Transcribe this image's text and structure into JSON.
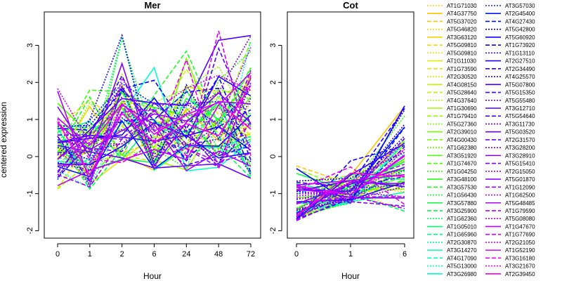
{
  "chart_data": [
    {
      "type": "line",
      "title": "Mer",
      "xlabel": "Hour",
      "ylabel": "centered expression",
      "x_categories": [
        "0",
        "1",
        "2",
        "6",
        "24",
        "48",
        "72"
      ],
      "ylim": [
        -2.2,
        3.9
      ],
      "yticks": [
        -2,
        -1,
        0,
        1,
        2,
        3
      ],
      "series_source": "legend.entries",
      "value_range_per_timepoint": [
        [
          -1.2,
          1.9
        ],
        [
          -1.2,
          1.8
        ],
        [
          -0.7,
          3.3
        ],
        [
          -0.7,
          2.5
        ],
        [
          -0.8,
          2.9
        ],
        [
          -0.8,
          3.6
        ],
        [
          -1.1,
          3.7
        ]
      ]
    },
    {
      "type": "line",
      "title": "Cot",
      "xlabel": "Hour",
      "ylabel": "",
      "x_categories": [
        "0",
        "1",
        "6"
      ],
      "ylim": [
        -2.2,
        3.9
      ],
      "yticks": [
        -2,
        -1,
        0,
        1,
        2,
        3
      ],
      "series_source": "legend.entries",
      "value_range_per_timepoint": [
        [
          -1.9,
          -0.2
        ],
        [
          -1.4,
          -0.1
        ],
        [
          -1.8,
          1.4
        ]
      ]
    }
  ],
  "legend": {
    "entries": [
      {
        "name": "AT1G71030",
        "color": "#ffcc00",
        "dash": "dot"
      },
      {
        "name": "AT4G37750",
        "color": "#ffc200",
        "dash": "solid"
      },
      {
        "name": "AT5G37020",
        "color": "#ffc800",
        "dash": "dash"
      },
      {
        "name": "AT5G46820",
        "color": "#ffd100",
        "dash": "dot"
      },
      {
        "name": "AT3G63120",
        "color": "#f7d400",
        "dash": "solid"
      },
      {
        "name": "AT5G09810",
        "color": "#f0dc00",
        "dash": "dash"
      },
      {
        "name": "AT5G09810",
        "color": "#e8e400",
        "dash": "dot"
      },
      {
        "name": "AT1G11030",
        "color": "#e0ea00",
        "dash": "solid"
      },
      {
        "name": "AT1G73590",
        "color": "#d6ef00",
        "dash": "dash"
      },
      {
        "name": "AT2G30520",
        "color": "#cdf200",
        "dash": "dot"
      },
      {
        "name": "AT4G08150",
        "color": "#c2f500",
        "dash": "solid"
      },
      {
        "name": "AT5G28640",
        "color": "#b8f800",
        "dash": "dash"
      },
      {
        "name": "AT4G37640",
        "color": "#adfa00",
        "dash": "dot"
      },
      {
        "name": "AT1G30690",
        "color": "#a0fb00",
        "dash": "solid"
      },
      {
        "name": "AT1G79410",
        "color": "#92fc00",
        "dash": "dash"
      },
      {
        "name": "AT5G27360",
        "color": "#85fd00",
        "dash": "dot"
      },
      {
        "name": "AT2G39010",
        "color": "#78fe00",
        "dash": "solid"
      },
      {
        "name": "AT4G00430",
        "color": "#6aff00",
        "dash": "dash"
      },
      {
        "name": "AT1G62380",
        "color": "#5cff00",
        "dash": "dot"
      },
      {
        "name": "AT3G51920",
        "color": "#4eff00",
        "dash": "solid"
      },
      {
        "name": "AT1G74670",
        "color": "#40ff00",
        "dash": "dash"
      },
      {
        "name": "AT1G04250",
        "color": "#33ff00",
        "dash": "dot"
      },
      {
        "name": "AT3G48100",
        "color": "#26ff10",
        "dash": "solid"
      },
      {
        "name": "AT3G57530",
        "color": "#1aff20",
        "dash": "dash"
      },
      {
        "name": "AT1G56430",
        "color": "#10ff30",
        "dash": "dot"
      },
      {
        "name": "AT3G57880",
        "color": "#08ff40",
        "dash": "solid"
      },
      {
        "name": "AT3G25900",
        "color": "#00ff50",
        "dash": "dash"
      },
      {
        "name": "AT1G62360",
        "color": "#00ff60",
        "dash": "dot"
      },
      {
        "name": "AT1G05010",
        "color": "#00ff70",
        "dash": "solid"
      },
      {
        "name": "AT1G65960",
        "color": "#00ff80",
        "dash": "dash"
      },
      {
        "name": "AT2G30870",
        "color": "#00ff90",
        "dash": "dot"
      },
      {
        "name": "AT3G14270",
        "color": "#00ffa0",
        "dash": "solid"
      },
      {
        "name": "AT4G17090",
        "color": "#00ffb0",
        "dash": "dash"
      },
      {
        "name": "AT5G13000",
        "color": "#00ffc0",
        "dash": "dot"
      },
      {
        "name": "AT3G26980",
        "color": "#00ffd0",
        "dash": "solid"
      },
      {
        "name": "AT3G57030",
        "color": "#0022ff",
        "dash": "dot"
      },
      {
        "name": "AT2G45400",
        "color": "#0018ff",
        "dash": "solid"
      },
      {
        "name": "AT4G27430",
        "color": "#000cff",
        "dash": "dash"
      },
      {
        "name": "AT5G42800",
        "color": "#0000ff",
        "dash": "dot"
      },
      {
        "name": "AT5G60920",
        "color": "#0800ff",
        "dash": "solid"
      },
      {
        "name": "AT1G73920",
        "color": "#1000ff",
        "dash": "dash"
      },
      {
        "name": "AT1G13110",
        "color": "#1800ff",
        "dash": "dot"
      },
      {
        "name": "AT2G27510",
        "color": "#2000ff",
        "dash": "solid"
      },
      {
        "name": "AT2G34490",
        "color": "#2800ff",
        "dash": "dash"
      },
      {
        "name": "AT4G25570",
        "color": "#3000ff",
        "dash": "dot"
      },
      {
        "name": "AT5G07800",
        "color": "#3800ff",
        "dash": "solid"
      },
      {
        "name": "AT5G15350",
        "color": "#4000ff",
        "dash": "dash"
      },
      {
        "name": "AT5G55480",
        "color": "#4800ff",
        "dash": "dot"
      },
      {
        "name": "AT3G12710",
        "color": "#5000ff",
        "dash": "solid"
      },
      {
        "name": "AT5G54640",
        "color": "#5800ff",
        "dash": "dash"
      },
      {
        "name": "AT3G11730",
        "color": "#6000ff",
        "dash": "dot"
      },
      {
        "name": "AT5G03520",
        "color": "#6800ff",
        "dash": "solid"
      },
      {
        "name": "AT2G31570",
        "color": "#7000ff",
        "dash": "dash"
      },
      {
        "name": "AT3G28200",
        "color": "#7800ff",
        "dash": "dot"
      },
      {
        "name": "AT3G28910",
        "color": "#8000ff",
        "dash": "solid"
      },
      {
        "name": "AT5G15410",
        "color": "#8800ff",
        "dash": "dash"
      },
      {
        "name": "AT2G15050",
        "color": "#9000ff",
        "dash": "dot"
      },
      {
        "name": "AT5G01870",
        "color": "#9800ff",
        "dash": "solid"
      },
      {
        "name": "AT1G12090",
        "color": "#a000ff",
        "dash": "dash"
      },
      {
        "name": "AT1G62500",
        "color": "#a800ff",
        "dash": "dot"
      },
      {
        "name": "AT5G48485",
        "color": "#b000ff",
        "dash": "solid"
      },
      {
        "name": "AT1G79590",
        "color": "#b800ff",
        "dash": "dash"
      },
      {
        "name": "AT5G08080",
        "color": "#c000ff",
        "dash": "dot"
      },
      {
        "name": "AT1G47670",
        "color": "#c800ff",
        "dash": "solid"
      },
      {
        "name": "AT1G77690",
        "color": "#d000ff",
        "dash": "dash"
      },
      {
        "name": "AT2G21050",
        "color": "#d800ff",
        "dash": "dot"
      },
      {
        "name": "AT1G52190",
        "color": "#e000ff",
        "dash": "solid"
      },
      {
        "name": "AT3G16180",
        "color": "#e800f8",
        "dash": "dash"
      },
      {
        "name": "AT3G21670",
        "color": "#f000f0",
        "dash": "dot"
      },
      {
        "name": "AT2G39450",
        "color": "#f800e8",
        "dash": "solid"
      }
    ]
  }
}
